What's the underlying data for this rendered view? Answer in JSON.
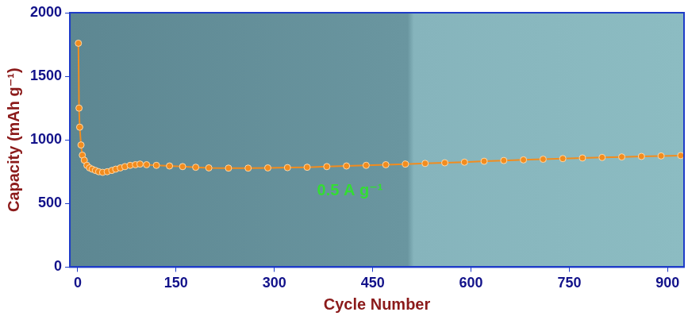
{
  "chart_data": {
    "type": "line",
    "x_label": "Cycle Number",
    "y_label": "Capacity (mAh g⁻¹)",
    "annotations": [
      "0.5 A g⁻¹"
    ],
    "x": [
      1,
      2,
      3,
      5,
      7,
      10,
      14,
      18,
      22,
      27,
      32,
      38,
      45,
      52,
      58,
      65,
      72,
      80,
      88,
      95,
      105,
      120,
      140,
      160,
      180,
      200,
      230,
      260,
      290,
      320,
      350,
      380,
      410,
      440,
      470,
      500,
      530,
      560,
      590,
      620,
      650,
      680,
      710,
      740,
      770,
      800,
      830,
      860,
      890,
      920
    ],
    "values": [
      1760,
      1250,
      1100,
      960,
      880,
      840,
      800,
      780,
      770,
      760,
      750,
      745,
      750,
      760,
      770,
      780,
      790,
      800,
      805,
      810,
      805,
      800,
      795,
      790,
      785,
      780,
      778,
      778,
      780,
      782,
      785,
      790,
      795,
      800,
      805,
      810,
      815,
      820,
      825,
      832,
      838,
      843,
      848,
      853,
      858,
      862,
      866,
      870,
      874,
      877
    ],
    "color": "#f28c1e",
    "marker": "circle",
    "line_style": "solid",
    "xlim": [
      -12,
      925
    ],
    "xticks": [
      0,
      150,
      300,
      450,
      600,
      750,
      900
    ],
    "ylim": [
      0,
      2000
    ],
    "yticks": [
      0,
      500,
      1000,
      1500,
      2000
    ],
    "grid": false
  }
}
